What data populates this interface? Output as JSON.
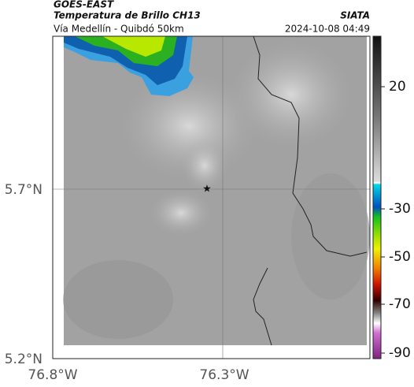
{
  "header": {
    "source": "GOES-EAST",
    "title": "Temperatura de Brillo CH13",
    "brand": "SIATA",
    "subtitle": "Vía Medellín - Quibdó 50km",
    "timestamp": "2024-10-08 04:49"
  },
  "map": {
    "lat_labels": [
      "5.7°N",
      "5.2°N"
    ],
    "lon_labels": [
      "76.8°W",
      "76.3°W"
    ]
  },
  "colorbar": {
    "ticks": [
      20,
      -30,
      -50,
      -70,
      -90
    ]
  }
}
